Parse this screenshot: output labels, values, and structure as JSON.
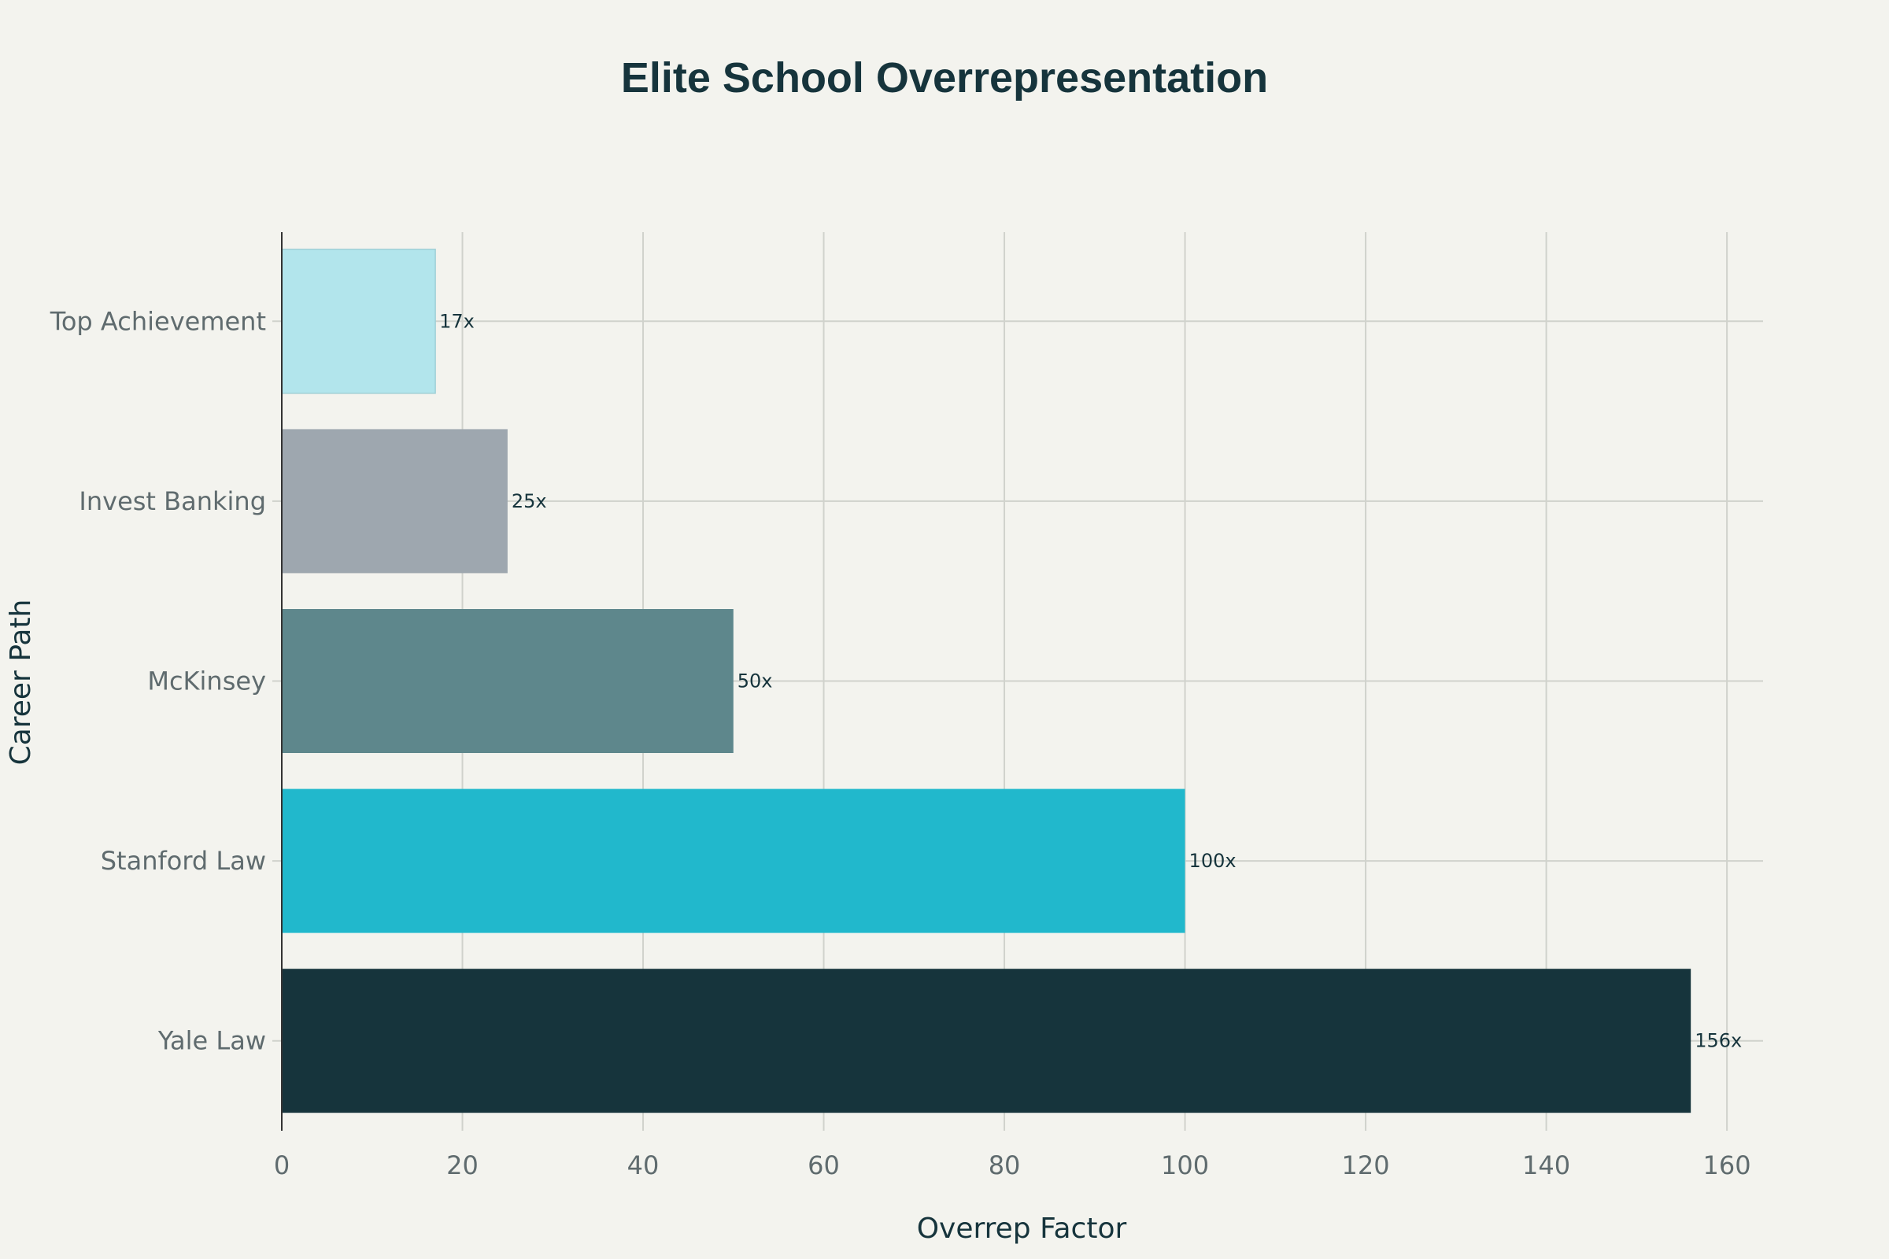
{
  "chart_data": {
    "type": "bar",
    "orientation": "horizontal",
    "title": "Elite School Overrepresentation",
    "xlabel": "Overrep Factor",
    "ylabel": "Career Path",
    "categories": [
      "Yale Law",
      "Stanford Law",
      "McKinsey",
      "Invest Banking",
      "Top Achievement"
    ],
    "values": [
      156,
      100,
      50,
      25,
      17
    ],
    "data_labels": [
      "156x",
      "100x",
      "50x",
      "25x",
      "17x"
    ],
    "bar_colors": [
      "#16343c",
      "#21b8cc",
      "#5e878c",
      "#9ea7af",
      "#b2e5ec"
    ],
    "xlim": [
      0,
      164
    ],
    "xticks": [
      0,
      20,
      40,
      60,
      80,
      100,
      120,
      140,
      160
    ],
    "grid": true,
    "legend": "none"
  },
  "colors": {
    "background": "#f3f3ee",
    "title": "#16343c",
    "axis_title": "#16343c",
    "tick_label": "#5f6b6e",
    "gridline": "#d0d2cc",
    "axis_line": "#333333",
    "data_label": "#16343c"
  }
}
